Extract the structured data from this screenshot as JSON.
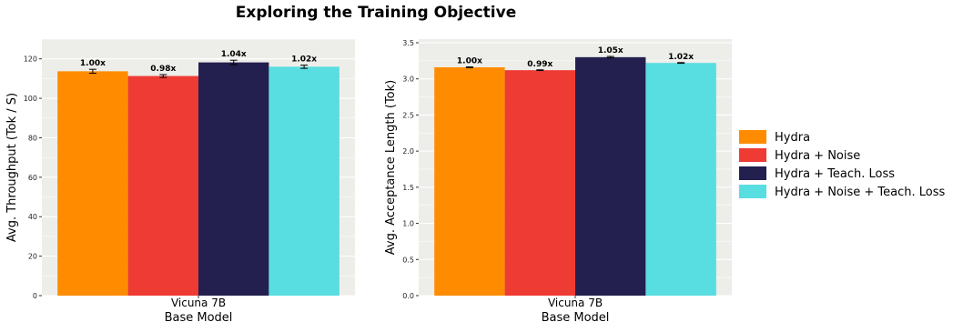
{
  "figure_title": "Exploring the Training Objective",
  "legend": {
    "placement": "right",
    "items": [
      {
        "label": "Hydra",
        "color": "#FF8C00"
      },
      {
        "label": "Hydra + Noise",
        "color": "#EE3B33"
      },
      {
        "label": "Hydra + Teach. Loss",
        "color": "#231F4E"
      },
      {
        "label": "Hydra + Noise + Teach. Loss",
        "color": "#58DDE0"
      }
    ]
  },
  "chart_data": [
    {
      "type": "bar",
      "title": "",
      "categories": [
        "Vicuna 7B"
      ],
      "xlabel": "Base Model",
      "ylabel": "Avg. Throughput (Tok / S)",
      "ylim": [
        0,
        130
      ],
      "yticks": [
        0,
        20,
        40,
        60,
        80,
        100,
        120
      ],
      "grid": true,
      "series": [
        {
          "name": "Hydra",
          "values": [
            113.7
          ],
          "error": [
            1.0
          ],
          "label": "1.00x"
        },
        {
          "name": "Hydra + Noise",
          "values": [
            111.3
          ],
          "error": [
            0.7
          ],
          "label": "0.98x"
        },
        {
          "name": "Hydra + Teach. Loss",
          "values": [
            118.2
          ],
          "error": [
            1.1
          ],
          "label": "1.04x"
        },
        {
          "name": "Hydra + Noise + Teach. Loss",
          "values": [
            116.0
          ],
          "error": [
            0.8
          ],
          "label": "1.02x"
        }
      ]
    },
    {
      "type": "bar",
      "title": "",
      "categories": [
        "Vicuna 7B"
      ],
      "xlabel": "Base Model",
      "ylabel": "Avg. Acceptance Length (Tok)",
      "ylim": [
        0,
        3.55
      ],
      "yticks": [
        0.0,
        0.5,
        1.0,
        1.5,
        2.0,
        2.5,
        3.0,
        3.5
      ],
      "grid": true,
      "series": [
        {
          "name": "Hydra",
          "values": [
            3.16
          ],
          "error": [
            0.005
          ],
          "label": "1.00x"
        },
        {
          "name": "Hydra + Noise",
          "values": [
            3.12
          ],
          "error": [
            0.005
          ],
          "label": "0.99x"
        },
        {
          "name": "Hydra + Teach. Loss",
          "values": [
            3.3
          ],
          "error": [
            0.01
          ],
          "label": "1.05x"
        },
        {
          "name": "Hydra + Noise + Teach. Loss",
          "values": [
            3.22
          ],
          "error": [
            0.005
          ],
          "label": "1.02x"
        }
      ]
    }
  ]
}
